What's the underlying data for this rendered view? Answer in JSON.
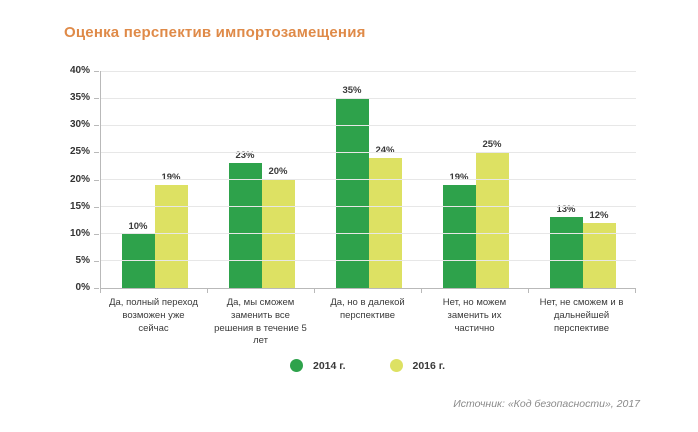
{
  "title": "Оценка перспектив импортозамещения",
  "title_color": "#df8a48",
  "source": "Источник: «Код безопасности», 2017",
  "chart_data": {
    "type": "bar",
    "title": "Оценка перспектив импортозамещения",
    "categories": [
      "Да, полный переход возможен уже сейчас",
      "Да, мы сможем заменить все решения в течение 5 лет",
      "Да, но в далекой перспективе",
      "Нет, но можем заменить их частично",
      "Нет, не сможем и в дальнейшей перспективе"
    ],
    "series": [
      {
        "name": "2014 г.",
        "color": "#2ea24b",
        "values": [
          10,
          23,
          35,
          19,
          13
        ]
      },
      {
        "name": "2016 г.",
        "color": "#dde163",
        "values": [
          19,
          20,
          24,
          25,
          12
        ]
      }
    ],
    "xlabel": "",
    "ylabel": "",
    "ylim": [
      0,
      40
    ],
    "y_tick_step": 5,
    "y_tick_labels": [
      "0%",
      "5%",
      "10%",
      "15%",
      "20%",
      "25%",
      "30%",
      "35%",
      "40%"
    ],
    "value_suffix": "%",
    "grid": true,
    "legend_position": "bottom"
  }
}
